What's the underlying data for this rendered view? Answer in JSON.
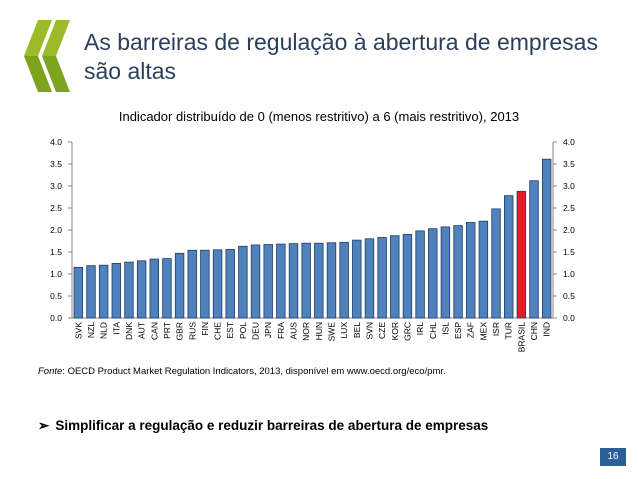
{
  "slide": {
    "title": "As barreiras de regulação à abertura de empresas são altas",
    "source_label": "Fonte",
    "source_text": ": OECD Product Market Regulation Indicators, 2013, disponível em www.oecd.org/eco/pmr.",
    "bullet_text": "Simplificar a regulação e reduzir barreiras de abertura de empresas",
    "page_number": "16",
    "colors": {
      "title": "#2b3f5c",
      "bar": "#4f81bd",
      "highlight": "#e02020",
      "logo": "#9bbb29",
      "badge": "#2b5f9a"
    }
  },
  "chart_data": {
    "type": "bar",
    "title": "Indicador distribuído de 0 (menos restritivo) a 6 (mais restritivo), 2013",
    "categories": [
      "SVK",
      "NZL",
      "NLD",
      "ITA",
      "DNK",
      "AUT",
      "CAN",
      "PRT",
      "GBR",
      "RUS",
      "FIN",
      "CHE",
      "EST",
      "POL",
      "DEU",
      "JPN",
      "FRA",
      "AUS",
      "NOR",
      "HUN",
      "SWE",
      "LUX",
      "BEL",
      "SVN",
      "CZE",
      "KOR",
      "GRC",
      "IRL",
      "CHL",
      "ISL",
      "ESP",
      "ZAF",
      "MEX",
      "ISR",
      "TUR",
      "BRASIL",
      "CHN",
      "IND"
    ],
    "values": [
      1.15,
      1.19,
      1.2,
      1.24,
      1.27,
      1.3,
      1.34,
      1.35,
      1.47,
      1.54,
      1.54,
      1.55,
      1.56,
      1.63,
      1.66,
      1.67,
      1.68,
      1.69,
      1.7,
      1.7,
      1.71,
      1.72,
      1.77,
      1.8,
      1.83,
      1.87,
      1.9,
      1.98,
      2.03,
      2.07,
      2.1,
      2.17,
      2.2,
      2.48,
      2.78,
      2.88,
      3.12,
      3.61
    ],
    "highlight": "BRASIL",
    "ylim": [
      0,
      4.0
    ],
    "yticks": [
      "0.0",
      "0.5",
      "1.0",
      "1.5",
      "2.0",
      "2.5",
      "3.0",
      "3.5",
      "4.0"
    ],
    "grid": false,
    "right_axis": true
  }
}
